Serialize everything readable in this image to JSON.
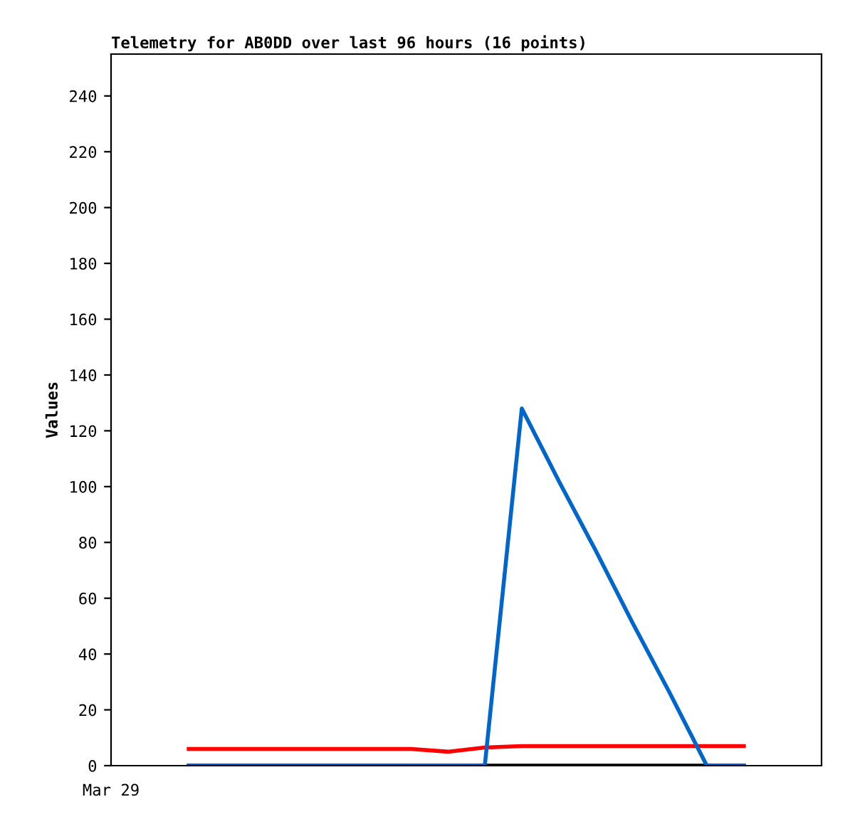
{
  "chart_data": {
    "type": "line",
    "title": "Telemetry for AB0DD over last 96 hours (16 points)",
    "ylabel": "Values",
    "annotations": [
      "Mar 29"
    ],
    "categories": [
      null,
      null,
      null,
      null,
      null,
      null,
      null,
      null,
      null,
      null,
      null,
      null,
      null,
      null,
      null,
      null
    ],
    "ylim": [
      0,
      255
    ],
    "yticks": [
      0,
      20,
      40,
      60,
      80,
      100,
      120,
      140,
      160,
      180,
      200,
      220,
      240
    ],
    "grid": false,
    "legend": false,
    "marker": "none",
    "line_style": "solid",
    "series": [
      {
        "color": "#000000",
        "values": [
          0,
          0,
          0,
          0,
          0,
          0,
          0,
          0,
          0,
          0,
          0,
          0,
          0,
          0,
          0,
          0
        ]
      },
      {
        "color": "#ff0000",
        "values": [
          6,
          6,
          6,
          6,
          6,
          6,
          6,
          5,
          6.5,
          7,
          7,
          7,
          7,
          7,
          7,
          7
        ]
      },
      {
        "color": "#0066cc",
        "values": [
          0,
          0,
          0,
          0,
          0,
          0,
          0,
          0,
          0,
          128,
          102,
          77,
          51,
          26,
          0,
          0
        ]
      }
    ]
  }
}
